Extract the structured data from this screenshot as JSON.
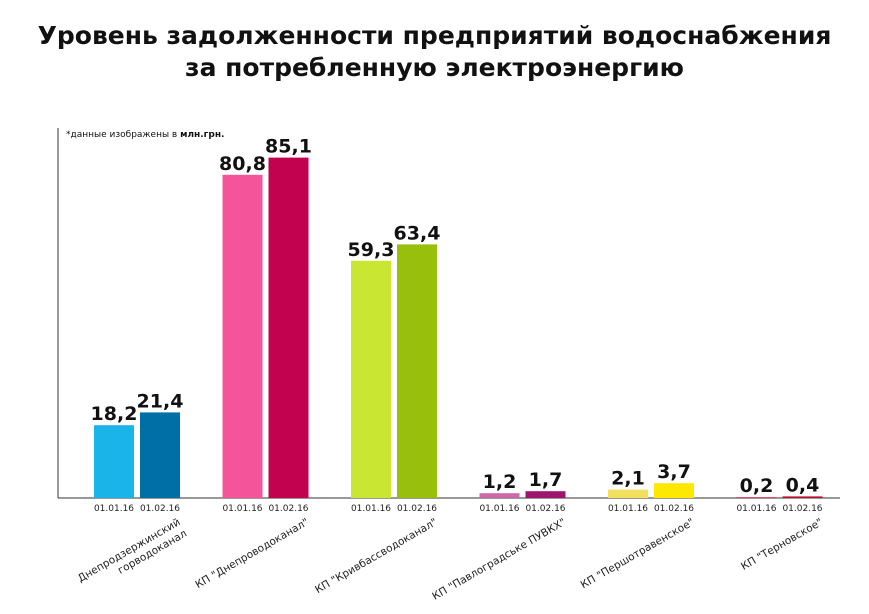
{
  "title_line1": "Уровень задолженности предприятий водоснабжения",
  "title_line2": "за потребленную электроэнергию",
  "note_prefix": "*данные изображены в ",
  "note_unit": "млн.грн.",
  "chart_data": {
    "type": "bar",
    "title": "Уровень задолженности предприятий водоснабжения за потребленную электроэнергию",
    "unit": "млн.грн.",
    "series_labels": [
      "01.01.16",
      "01.02.16"
    ],
    "ylim": [
      0,
      95
    ],
    "grid": false,
    "groups": [
      {
        "category": [
          "Днепродзержинский",
          "горводоканал"
        ],
        "values": [
          18.2,
          21.4
        ],
        "labels": [
          "18,2",
          "21,4"
        ],
        "colors": [
          "#1ab4e8",
          "#006fa6"
        ]
      },
      {
        "category": [
          "КП \"Днепроводоканал\""
        ],
        "values": [
          80.8,
          85.1
        ],
        "labels": [
          "80,8",
          "85,1"
        ],
        "colors": [
          "#f4559a",
          "#c3024f"
        ]
      },
      {
        "category": [
          "КП \"Кривбассводоканал\""
        ],
        "values": [
          59.3,
          63.4
        ],
        "labels": [
          "59,3",
          "63,4"
        ],
        "colors": [
          "#c8e632",
          "#98bf0b"
        ]
      },
      {
        "category": [
          "КП \"Павлоградське ПУВКХ\""
        ],
        "values": [
          1.2,
          1.7
        ],
        "labels": [
          "1,2",
          "1,7"
        ],
        "colors": [
          "#cc6aa8",
          "#9e1570"
        ]
      },
      {
        "category": [
          "КП \"Першотравенское\""
        ],
        "values": [
          2.1,
          3.7
        ],
        "labels": [
          "2,1",
          "3,7"
        ],
        "colors": [
          "#f2e05c",
          "#ffe800"
        ]
      },
      {
        "category": [
          "КП \"Терновское\""
        ],
        "values": [
          0.2,
          0.4
        ],
        "labels": [
          "0,2",
          "0,4"
        ],
        "colors": [
          "#e04a6c",
          "#b8102e"
        ]
      }
    ]
  }
}
